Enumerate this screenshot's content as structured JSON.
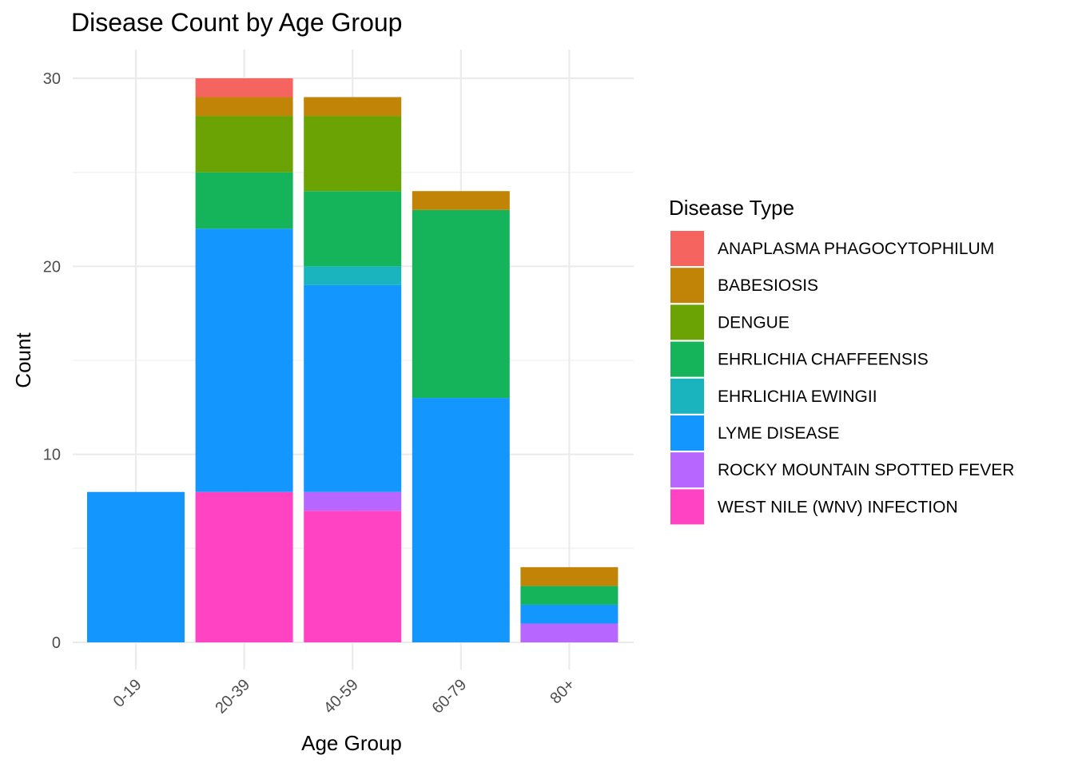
{
  "chart_data": {
    "type": "bar",
    "stacked": true,
    "title": "Disease Count by Age Group",
    "xlabel": "Age Group",
    "ylabel": "Count",
    "ylim": [
      0,
      30
    ],
    "yticks": [
      0,
      10,
      20,
      30
    ],
    "categories": [
      "0-19",
      "20-39",
      "40-59",
      "60-79",
      "80+"
    ],
    "legend_title": "Disease Type",
    "legend_position": "right",
    "grid": true,
    "series": [
      {
        "name": "WEST NILE (WNV) INFECTION",
        "color": "#FF43C3",
        "values": [
          0,
          8,
          7,
          0,
          0
        ]
      },
      {
        "name": "ROCKY MOUNTAIN SPOTTED FEVER",
        "color": "#B766FF",
        "values": [
          0,
          0,
          1,
          0,
          1
        ]
      },
      {
        "name": "LYME DISEASE",
        "color": "#1496FF",
        "values": [
          8,
          14,
          11,
          13,
          1
        ]
      },
      {
        "name": "EHRLICHIA EWINGII",
        "color": "#19B4BE",
        "values": [
          0,
          0,
          1,
          0,
          0
        ]
      },
      {
        "name": "EHRLICHIA CHAFFEENSIS",
        "color": "#16B45A",
        "values": [
          0,
          3,
          4,
          10,
          1
        ]
      },
      {
        "name": "DENGUE",
        "color": "#6BA305",
        "values": [
          0,
          3,
          4,
          0,
          0
        ]
      },
      {
        "name": "BABESIOSIS",
        "color": "#C18406",
        "values": [
          0,
          1,
          1,
          1,
          1
        ]
      },
      {
        "name": "ANAPLASMA PHAGOCYTOPHILUM",
        "color": "#F6645F",
        "values": [
          0,
          1,
          0,
          0,
          0
        ]
      }
    ],
    "legend_order": [
      "ANAPLASMA PHAGOCYTOPHILUM",
      "BABESIOSIS",
      "DENGUE",
      "EHRLICHIA CHAFFEENSIS",
      "EHRLICHIA EWINGII",
      "LYME DISEASE",
      "ROCKY MOUNTAIN SPOTTED FEVER",
      "WEST NILE (WNV) INFECTION"
    ]
  }
}
